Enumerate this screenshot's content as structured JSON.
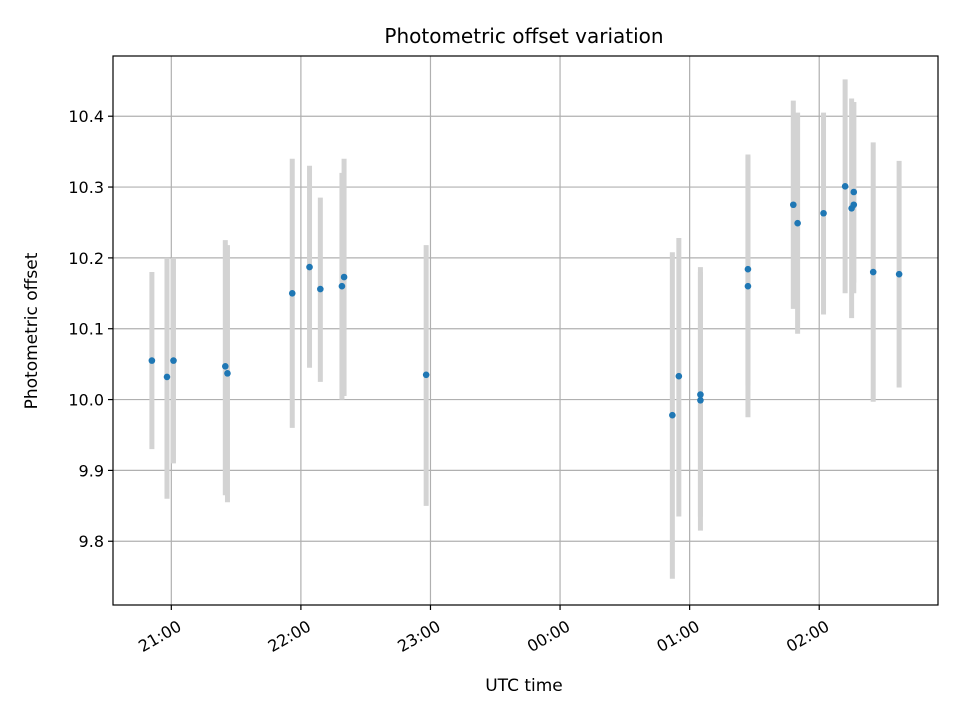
{
  "chart_data": {
    "type": "scatter",
    "title": "Photometric offset variation",
    "xlabel": "UTC time",
    "ylabel": "Photometric offset",
    "x_axis": "time",
    "x_start": "20:33",
    "x_end": "02:55",
    "xlim": [
      "20:33",
      "02:55"
    ],
    "xticks": [
      "21:00",
      "22:00",
      "23:00",
      "00:00",
      "01:00",
      "02:00"
    ],
    "ylim": [
      9.71,
      10.485
    ],
    "yticks": [
      9.8,
      9.9,
      10.0,
      10.1,
      10.2,
      10.3,
      10.4
    ],
    "ytick_labels": [
      "9.8",
      "9.9",
      "10.0",
      "10.1",
      "10.2",
      "10.3",
      "10.4"
    ],
    "grid": true,
    "colors": {
      "point": "#1f77b4",
      "errorbar": "#d3d3d3",
      "grid": "#b0b0b0"
    },
    "points": [
      {
        "x": "20:51",
        "y": 10.055,
        "ylow": 9.93,
        "yhigh": 10.18
      },
      {
        "x": "20:58",
        "y": 10.032,
        "ylow": 9.86,
        "yhigh": 10.2
      },
      {
        "x": "21:01",
        "y": 10.055,
        "ylow": 9.91,
        "yhigh": 10.2
      },
      {
        "x": "21:25",
        "y": 10.047,
        "ylow": 9.865,
        "yhigh": 10.225
      },
      {
        "x": "21:26",
        "y": 10.037,
        "ylow": 9.855,
        "yhigh": 10.218
      },
      {
        "x": "21:56",
        "y": 10.15,
        "ylow": 9.96,
        "yhigh": 10.34
      },
      {
        "x": "22:04",
        "y": 10.187,
        "ylow": 10.045,
        "yhigh": 10.33
      },
      {
        "x": "22:09",
        "y": 10.156,
        "ylow": 10.025,
        "yhigh": 10.285
      },
      {
        "x": "22:19",
        "y": 10.16,
        "ylow": 10.0,
        "yhigh": 10.32
      },
      {
        "x": "22:20",
        "y": 10.173,
        "ylow": 10.005,
        "yhigh": 10.34
      },
      {
        "x": "22:58",
        "y": 10.035,
        "ylow": 9.85,
        "yhigh": 10.218
      },
      {
        "x": "00:52",
        "y": 9.978,
        "ylow": 9.747,
        "yhigh": 10.208
      },
      {
        "x": "00:55",
        "y": 10.033,
        "ylow": 9.835,
        "yhigh": 10.228
      },
      {
        "x": "01:05",
        "y": 10.007,
        "ylow": 9.835,
        "yhigh": 10.187
      },
      {
        "x": "01:05",
        "y": 9.999,
        "ylow": 9.815,
        "yhigh": 10.18
      },
      {
        "x": "01:27",
        "y": 10.184,
        "ylow": 10.02,
        "yhigh": 10.346
      },
      {
        "x": "01:27",
        "y": 10.16,
        "ylow": 9.975,
        "yhigh": 10.344
      },
      {
        "x": "01:48",
        "y": 10.275,
        "ylow": 10.128,
        "yhigh": 10.422
      },
      {
        "x": "01:50",
        "y": 10.249,
        "ylow": 10.093,
        "yhigh": 10.405
      },
      {
        "x": "02:02",
        "y": 10.263,
        "ylow": 10.12,
        "yhigh": 10.405
      },
      {
        "x": "02:12",
        "y": 10.301,
        "ylow": 10.15,
        "yhigh": 10.452
      },
      {
        "x": "02:15",
        "y": 10.27,
        "ylow": 10.115,
        "yhigh": 10.425
      },
      {
        "x": "02:16",
        "y": 10.275,
        "ylow": 10.15,
        "yhigh": 10.42
      },
      {
        "x": "02:16",
        "y": 10.293,
        "ylow": 10.165,
        "yhigh": 10.42
      },
      {
        "x": "02:25",
        "y": 10.18,
        "ylow": 9.997,
        "yhigh": 10.363
      },
      {
        "x": "02:37",
        "y": 10.177,
        "ylow": 10.017,
        "yhigh": 10.337
      }
    ]
  }
}
